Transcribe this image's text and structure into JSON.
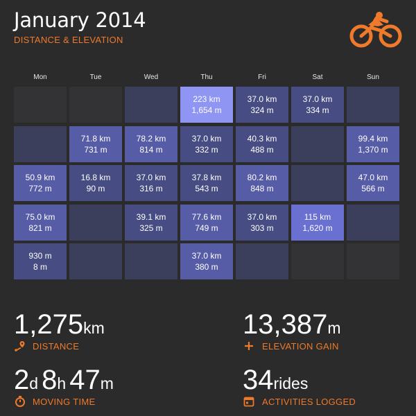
{
  "header": {
    "title": "January 2014",
    "subtitle": "DISTANCE & ELEVATION"
  },
  "colors": {
    "accent": "#f07a2b",
    "background": "#2b2b2b",
    "empty_cell": "#333336"
  },
  "icons": {
    "logo": "cyclist-icon",
    "distance": "route-pin-icon",
    "elevation": "plus-icon",
    "moving_time": "stopwatch-icon",
    "activities": "calendar-icon"
  },
  "calendar": {
    "day_names": [
      "Mon",
      "Tue",
      "Wed",
      "Thu",
      "Fri",
      "Sat",
      "Sun"
    ],
    "weeks": [
      [
        {
          "dist": "",
          "elev": "",
          "level": -1
        },
        {
          "dist": "",
          "elev": "",
          "level": -1
        },
        {
          "dist": "",
          "elev": "",
          "level": 0
        },
        {
          "dist": "223 km",
          "elev": "1,654 m",
          "level": 4
        },
        {
          "dist": "37.0 km",
          "elev": "324 m",
          "level": 1
        },
        {
          "dist": "37.0 km",
          "elev": "334 m",
          "level": 1
        },
        {
          "dist": "",
          "elev": "",
          "level": 0
        }
      ],
      [
        {
          "dist": "",
          "elev": "",
          "level": 0
        },
        {
          "dist": "71.8 km",
          "elev": "731 m",
          "level": 2
        },
        {
          "dist": "78.2 km",
          "elev": "814 m",
          "level": 2
        },
        {
          "dist": "37.0 km",
          "elev": "332 m",
          "level": 1
        },
        {
          "dist": "40.3 km",
          "elev": "488 m",
          "level": 1
        },
        {
          "dist": "",
          "elev": "",
          "level": 0
        },
        {
          "dist": "99.4 km",
          "elev": "1,370 m",
          "level": 2
        }
      ],
      [
        {
          "dist": "50.9 km",
          "elev": "772 m",
          "level": 2
        },
        {
          "dist": "16.8 km",
          "elev": "90 m",
          "level": 1
        },
        {
          "dist": "37.0 km",
          "elev": "316 m",
          "level": 1
        },
        {
          "dist": "37.8 km",
          "elev": "543 m",
          "level": 1
        },
        {
          "dist": "80.2 km",
          "elev": "848 m",
          "level": 2
        },
        {
          "dist": "",
          "elev": "",
          "level": 0
        },
        {
          "dist": "47.0 km",
          "elev": "566 m",
          "level": 2
        }
      ],
      [
        {
          "dist": "75.0 km",
          "elev": "821 m",
          "level": 2
        },
        {
          "dist": "",
          "elev": "",
          "level": 0
        },
        {
          "dist": "39.1 km",
          "elev": "325 m",
          "level": 1
        },
        {
          "dist": "77.6 km",
          "elev": "749 m",
          "level": 2
        },
        {
          "dist": "37.0 km",
          "elev": "303 m",
          "level": 1
        },
        {
          "dist": "115 km",
          "elev": "1,620 m",
          "level": 3
        },
        {
          "dist": "",
          "elev": "",
          "level": 0
        }
      ],
      [
        {
          "dist": "930 m",
          "elev": "8 m",
          "level": 1
        },
        {
          "dist": "",
          "elev": "",
          "level": 0
        },
        {
          "dist": "",
          "elev": "",
          "level": 0
        },
        {
          "dist": "37.0 km",
          "elev": "380 m",
          "level": 2
        },
        {
          "dist": "",
          "elev": "",
          "level": 0
        },
        {
          "dist": "",
          "elev": "",
          "level": -1
        },
        {
          "dist": "",
          "elev": "",
          "level": -1
        }
      ]
    ]
  },
  "stats": {
    "distance": {
      "value": "1,275",
      "unit": "km",
      "label": "DISTANCE"
    },
    "elevation": {
      "value": "13,387",
      "unit": "m",
      "label": "ELEVATION GAIN"
    },
    "moving_time": {
      "days": "2",
      "d_unit": "d",
      "hours": "8",
      "h_unit": "h",
      "minutes": "47",
      "m_unit": "m",
      "label": "MOVING TIME"
    },
    "activities": {
      "value": "34",
      "unit": "rides",
      "label": "ACTIVITIES LOGGED"
    }
  }
}
